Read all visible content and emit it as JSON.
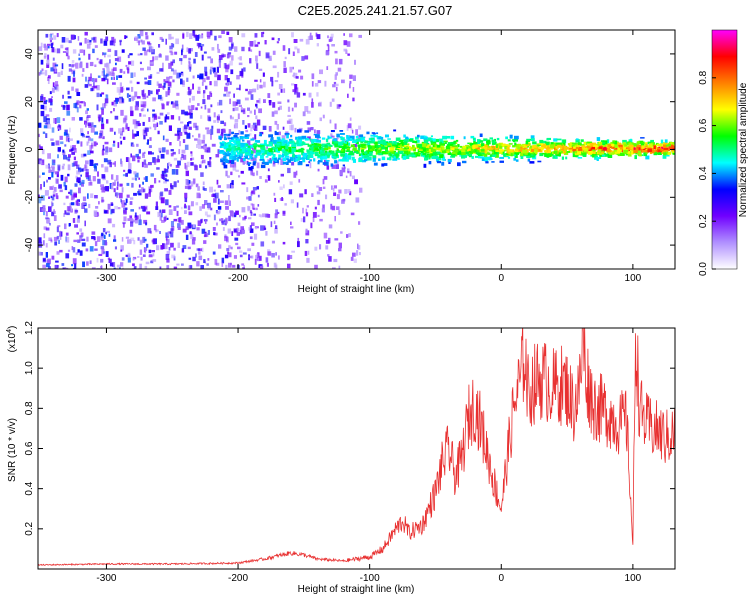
{
  "title": "C2E5.2025.241.21.57.G07",
  "chart_data": [
    {
      "type": "heatmap",
      "name": "spectrogram",
      "xlabel": "Height of straight line (km)",
      "ylabel": "Frequency (Hz)",
      "xlim": [
        -352,
        132
      ],
      "ylim": [
        -50,
        50
      ],
      "xticks": [
        -300,
        -200,
        -100,
        0,
        100
      ],
      "xtick_labels": [
        "-300",
        "-200",
        "-100",
        "0",
        "100"
      ],
      "yticks": [
        -40,
        -20,
        0,
        20,
        40
      ],
      "ytick_labels": [
        "-40",
        "-20",
        "0",
        "20",
        "40"
      ],
      "colorbar": {
        "label": "Normalized spectral amplitude",
        "range": [
          0,
          1
        ],
        "ticks": [
          0,
          0.2,
          0.4,
          0.6,
          0.8
        ],
        "tick_labels": [
          "0.0",
          "0.2",
          "0.4",
          "0.6",
          "0.8"
        ],
        "colors": [
          "#ffffff",
          "#b090ff",
          "#7000ff",
          "#0000ff",
          "#00ffff",
          "#00ff00",
          "#ffff00",
          "#ff8000",
          "#ff0000",
          "#ff00ff"
        ]
      },
      "signal_band": {
        "x_start": -215,
        "x_end": 132,
        "center_frequency": 1,
        "onset_normalized_amplitude": 0.3,
        "peak_normalized_amplitude": 1.0
      },
      "noise_region": {
        "x_start": -352,
        "x_end": -108,
        "frequency_range": [
          -50,
          50
        ]
      }
    },
    {
      "type": "line",
      "name": "snr",
      "xlabel": "Height of straight line (km)",
      "ylabel": "SNR (10 * v/v)",
      "multiplier_label": "(x10",
      "multiplier_exponent": "4",
      "multiplier_close": ")",
      "color": "#e83030",
      "xlim": [
        -352,
        132
      ],
      "ylim": [
        0,
        1.2
      ],
      "xticks": [
        -300,
        -200,
        -100,
        0,
        100
      ],
      "xtick_labels": [
        "-300",
        "-200",
        "-100",
        "0",
        "100"
      ],
      "yticks": [
        0.2,
        0.4,
        0.6,
        0.8,
        1.0,
        1.2
      ],
      "ytick_labels": [
        "0.2",
        "0.4",
        "0.6",
        "0.8",
        "1.0",
        "1.2"
      ],
      "series": [
        {
          "name": "SNR",
          "x": [
            -352,
            -300,
            -250,
            -200,
            -180,
            -160,
            -150,
            -140,
            -120,
            -100,
            -90,
            -80,
            -75,
            -70,
            -60,
            -55,
            -50,
            -45,
            -40,
            -35,
            -30,
            -25,
            -20,
            -15,
            -10,
            -5,
            0,
            5,
            10,
            15,
            18,
            20,
            25,
            30,
            35,
            40,
            45,
            50,
            55,
            60,
            62,
            65,
            70,
            75,
            80,
            85,
            90,
            95,
            98,
            100,
            102,
            105,
            110,
            115,
            120,
            125,
            132
          ],
          "y": [
            0.02,
            0.025,
            0.025,
            0.03,
            0.05,
            0.08,
            0.07,
            0.05,
            0.04,
            0.06,
            0.1,
            0.2,
            0.24,
            0.18,
            0.22,
            0.3,
            0.38,
            0.52,
            0.6,
            0.46,
            0.55,
            0.75,
            0.82,
            0.7,
            0.56,
            0.42,
            0.3,
            0.58,
            0.82,
            0.95,
            1.1,
            0.88,
            0.92,
            0.95,
            0.93,
            0.9,
            0.92,
            0.9,
            0.8,
            0.92,
            1.15,
            0.95,
            0.82,
            0.8,
            0.78,
            0.75,
            0.72,
            0.75,
            0.4,
            0.1,
            1.2,
            0.8,
            0.72,
            0.7,
            0.68,
            0.65,
            0.68
          ]
        }
      ]
    }
  ]
}
